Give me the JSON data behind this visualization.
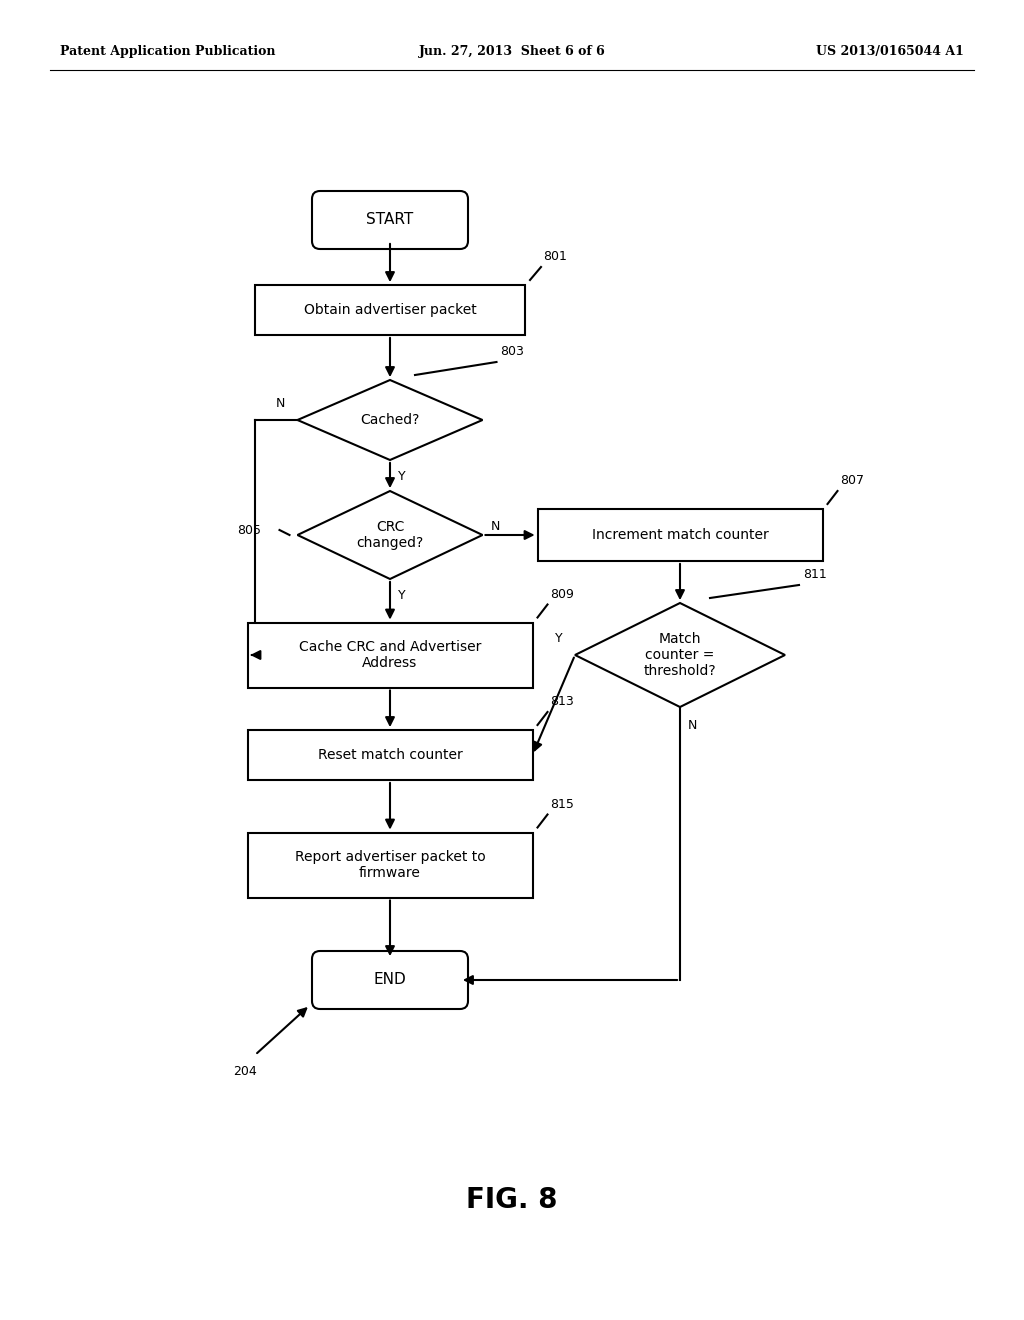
{
  "bg_color": "#ffffff",
  "header_left": "Patent Application Publication",
  "header_center": "Jun. 27, 2013  Sheet 6 of 6",
  "header_right": "US 2013/0165044 A1",
  "fig_label": "FIG. 8",
  "diagram_label": "204",
  "arrow_color": "#000000",
  "line_width": 1.5,
  "font_size_node": 10,
  "font_size_header": 9,
  "font_size_figlabel": 20,
  "font_size_label": 9
}
